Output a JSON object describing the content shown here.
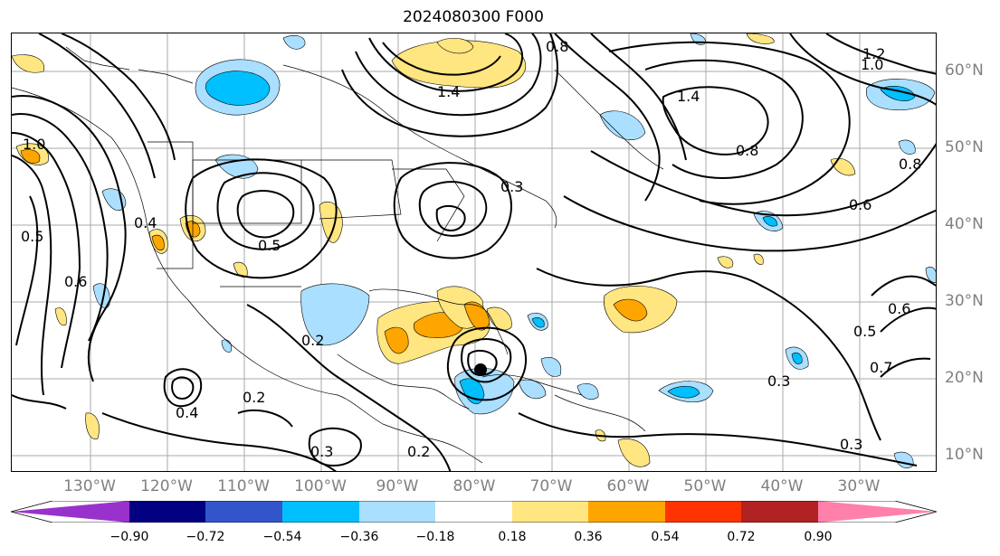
{
  "title": "2024080300 F000",
  "lat_labels": [
    "60°N",
    "50°N",
    "40°N",
    "30°N",
    "20°N",
    "10°N"
  ],
  "lon_labels": [
    "130°W",
    "120°W",
    "110°W",
    "100°W",
    "90°W",
    "80°W",
    "70°W",
    "60°W",
    "50°W",
    "40°W",
    "30°W"
  ],
  "colorbar": {
    "ticks": [
      "−0.90",
      "−0.72",
      "−0.54",
      "−0.36",
      "−0.18",
      "0.18",
      "0.36",
      "0.54",
      "0.72",
      "0.90"
    ],
    "colors": [
      "#9932cc",
      "#000080",
      "#3355cc",
      "#00bfff",
      "#aadfff",
      "#ffffff",
      "#ffe680",
      "#ffa500",
      "#ff3300",
      "#b22222",
      "#ff80aa"
    ]
  },
  "contour_labels": [
    "1.4",
    "1.4",
    "1.2",
    "1.0",
    "1.0",
    "0.8",
    "0.8",
    "0.6",
    "0.6",
    "0.5",
    "0.5",
    "0.4",
    "0.3",
    "0.3",
    "0.3",
    "0.2",
    "0.2",
    "0.2",
    "0.7",
    "0.8",
    "0.6",
    "0.5",
    "0.3",
    "0.4"
  ]
}
